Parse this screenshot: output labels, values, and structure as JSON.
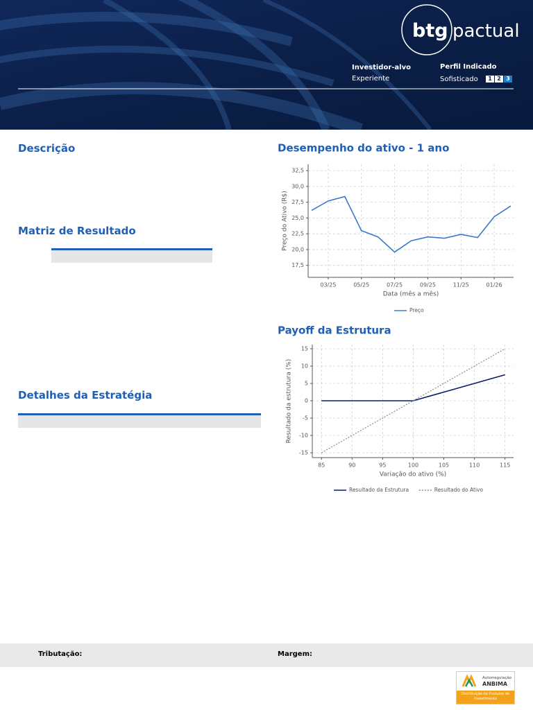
{
  "header": {
    "logo": {
      "mark": "btg",
      "word": "pactual"
    },
    "investor_label": "Investidor-alvo",
    "investor_value": "Experiente",
    "profile_label": "Perfil Indicado",
    "profile_value": "Sofisticado",
    "profile_levels": [
      "1",
      "2",
      "3"
    ]
  },
  "sections": {
    "description": "Descrição",
    "result_matrix": "Matriz de Resultado",
    "strategy_details": "Detalhes da Estratégia"
  },
  "chart_data": [
    {
      "type": "line",
      "title": "Desempenho do ativo - 1 ano",
      "xlabel": "Data (mês a mês)",
      "ylabel": "Preço do Ativo (R$)",
      "categories": [
        null,
        "03/25",
        null,
        "05/25",
        null,
        "07/25",
        null,
        "09/25",
        null,
        "11/25",
        null,
        "01/26",
        null
      ],
      "series": [
        {
          "name": "Preço",
          "color": "#3a78c9",
          "style": "solid",
          "values": [
            26.2,
            27.7,
            28.4,
            23.0,
            22.0,
            19.6,
            21.4,
            22.0,
            21.8,
            22.4,
            21.9,
            25.2,
            26.9
          ]
        }
      ],
      "ylim": [
        15.6,
        33.5
      ],
      "yticks": [
        {
          "value": 17.5,
          "label": "17,5"
        },
        {
          "value": 20,
          "label": "20,0"
        },
        {
          "value": 22.5,
          "label": "22,5"
        },
        {
          "value": 25,
          "label": "25,0"
        },
        {
          "value": 27.5,
          "label": "27,5"
        },
        {
          "value": 30,
          "label": "30,0"
        },
        {
          "value": 32.5,
          "label": "32,5"
        }
      ],
      "grid": true,
      "legend": "bottom"
    },
    {
      "type": "line",
      "title": "Payoff da Estrutura",
      "xlabel": "Variação do ativo (%)",
      "ylabel": "Resultado da estrutura (%)",
      "x": [
        85,
        100,
        115
      ],
      "series": [
        {
          "name": "Resultado da Estrutura",
          "color": "#0a1a6b",
          "style": "solid",
          "values": [
            0,
            0,
            7.5
          ]
        },
        {
          "name": "Resultado do Ativo",
          "color": "#888888",
          "style": "dotted",
          "values": [
            -15,
            0,
            15
          ]
        }
      ],
      "xlim": [
        83.5,
        116.4
      ],
      "xticks": [
        85,
        90,
        95,
        100,
        105,
        110,
        115
      ],
      "ylim": [
        -16.4,
        16.2
      ],
      "yticks": [
        -15,
        -10,
        -5,
        0,
        5,
        10,
        15
      ],
      "grid": true,
      "legend": "bottom"
    }
  ],
  "footer": {
    "taxation": "Tributação:",
    "margin": "Margem:",
    "badge": {
      "top": "Autorregulação",
      "brand": "ANBIMA",
      "bottom": "Distribuição de Produtos de Investimento"
    }
  }
}
